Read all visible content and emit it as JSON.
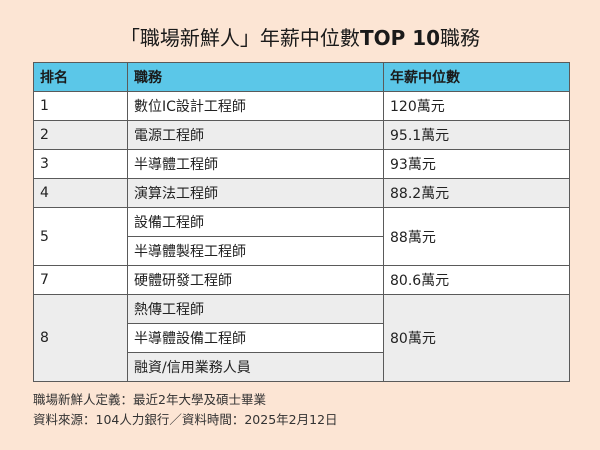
{
  "title": {
    "prefix": "「職場新鮮人」年薪中位數",
    "bold": "TOP 10",
    "suffix": "職務"
  },
  "table": {
    "headers": {
      "rank": "排名",
      "job": "職務",
      "salary": "年薪中位數"
    },
    "rows": [
      {
        "rank": "1",
        "jobs": [
          "數位IC設計工程師"
        ],
        "salary": "120萬元"
      },
      {
        "rank": "2",
        "jobs": [
          "電源工程師"
        ],
        "salary": "95.1萬元"
      },
      {
        "rank": "3",
        "jobs": [
          "半導體工程師"
        ],
        "salary": "93萬元"
      },
      {
        "rank": "4",
        "jobs": [
          "演算法工程師"
        ],
        "salary": "88.2萬元"
      },
      {
        "rank": "5",
        "jobs": [
          "設備工程師",
          "半導體製程工程師"
        ],
        "salary": "88萬元"
      },
      {
        "rank": "7",
        "jobs": [
          "硬體研發工程師"
        ],
        "salary": "80.6萬元"
      },
      {
        "rank": "8",
        "jobs": [
          "熱傳工程師",
          "半導體設備工程師",
          "融資/信用業務人員"
        ],
        "salary": "80萬元"
      }
    ]
  },
  "footnotes": {
    "definition": "職場新鮮人定義：最近2年大學及碩士畢業",
    "source": "資料來源：104人力銀行／資料時間：2025年2月12日"
  },
  "colors": {
    "background": "#fce5d4",
    "header": "#5bc7e8",
    "row_white": "#ffffff",
    "row_grey": "#ededed"
  }
}
